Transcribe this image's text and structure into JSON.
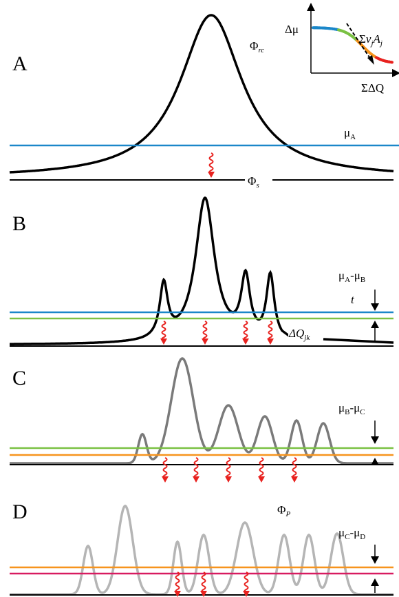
{
  "colors": {
    "black_curve": "#000000",
    "gray_curve_c": "#7a7a7a",
    "gray_curve_d": "#b5b5b5",
    "blue": "#1b87c9",
    "green": "#7ac143",
    "orange": "#f7941d",
    "magenta": "#d81b60",
    "red_arrow": "#e8221f"
  },
  "panels": [
    {
      "letter": "A"
    },
    {
      "letter": "B"
    },
    {
      "letter": "C"
    },
    {
      "letter": "D"
    }
  ],
  "labels": {
    "phi_rc": {
      "main": "Φ",
      "sub": "rc"
    },
    "phi_s": {
      "main": "Φ",
      "sub": "s"
    },
    "phi_p": {
      "main": "Φ",
      "sub": "P"
    },
    "mu_a": {
      "main": "μ",
      "sub": "A"
    },
    "mu_ab": {
      "m1": "μ",
      "s1": "A",
      "dash": "-",
      "m2": "μ",
      "s2": "B"
    },
    "mu_bc": {
      "m1": "μ",
      "s1": "B",
      "dash": "-",
      "m2": "μ",
      "s2": "C"
    },
    "mu_cd": {
      "m1": "μ",
      "s1": "C",
      "dash": "-",
      "m2": "μ",
      "s2": "D"
    },
    "t": "t",
    "delta_q_jk": {
      "main": "ΔQ",
      "sub": "jk"
    }
  },
  "inset": {
    "y_label": "Δμ",
    "x_label": "ΣΔQ",
    "flux_label": {
      "sigma": "Σ",
      "nu": "ν",
      "nu_sub": "j",
      "a": "A",
      "a_sub": "j"
    },
    "gradient_colors": [
      "#1b87c9",
      "#7ac143",
      "#f7941d",
      "#e8221f"
    ]
  }
}
